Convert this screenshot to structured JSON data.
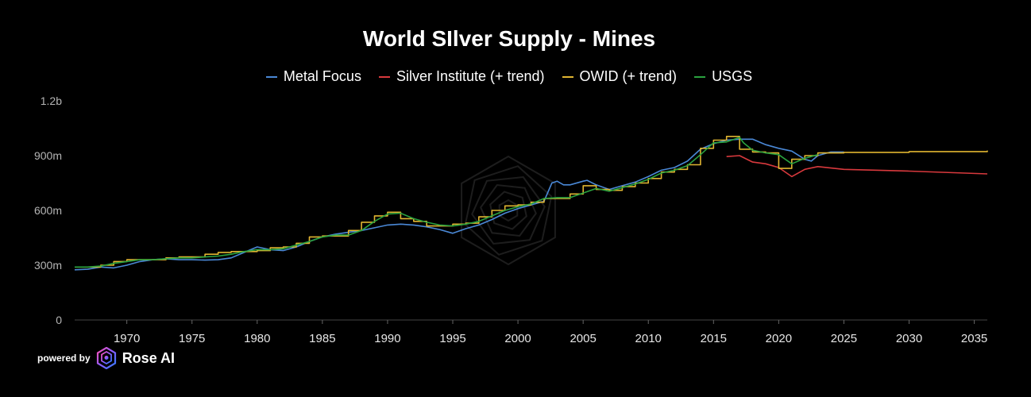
{
  "chart_data": {
    "type": "line",
    "title": "World SIlver Supply - Mines",
    "xlabel": "",
    "ylabel": "",
    "xlim": [
      1966,
      2036
    ],
    "ylim": [
      0,
      1200
    ],
    "y_ticks": [
      {
        "value": 0,
        "label": "0"
      },
      {
        "value": 300,
        "label": "300m"
      },
      {
        "value": 600,
        "label": "600m"
      },
      {
        "value": 900,
        "label": "900m"
      },
      {
        "value": 1200,
        "label": "1.2b"
      }
    ],
    "x_ticks": [
      {
        "value": 1970,
        "label": "1970"
      },
      {
        "value": 1975,
        "label": "1975"
      },
      {
        "value": 1980,
        "label": "1980"
      },
      {
        "value": 1985,
        "label": "1985"
      },
      {
        "value": 1990,
        "label": "1990"
      },
      {
        "value": 1995,
        "label": "1995"
      },
      {
        "value": 2000,
        "label": "2000"
      },
      {
        "value": 2005,
        "label": "2005"
      },
      {
        "value": 2010,
        "label": "2010"
      },
      {
        "value": 2015,
        "label": "2015"
      },
      {
        "value": 2020,
        "label": "2020"
      },
      {
        "value": 2025,
        "label": "2025"
      },
      {
        "value": 2030,
        "label": "2030"
      },
      {
        "value": 2035,
        "label": "2035"
      }
    ],
    "grid": false,
    "legend_position": "top-center",
    "series": [
      {
        "name": "Metal Focus",
        "color": "#4a88d6",
        "step": false,
        "points": [
          [
            1966,
            275
          ],
          [
            1967,
            278
          ],
          [
            1968,
            290
          ],
          [
            1969,
            285
          ],
          [
            1970,
            300
          ],
          [
            1971,
            320
          ],
          [
            1972,
            330
          ],
          [
            1973,
            335
          ],
          [
            1974,
            330
          ],
          [
            1975,
            330
          ],
          [
            1976,
            328
          ],
          [
            1977,
            330
          ],
          [
            1978,
            340
          ],
          [
            1979,
            370
          ],
          [
            1980,
            400
          ],
          [
            1981,
            385
          ],
          [
            1982,
            380
          ],
          [
            1983,
            400
          ],
          [
            1984,
            430
          ],
          [
            1985,
            455
          ],
          [
            1986,
            470
          ],
          [
            1987,
            480
          ],
          [
            1988,
            490
          ],
          [
            1989,
            505
          ],
          [
            1990,
            520
          ],
          [
            1991,
            525
          ],
          [
            1992,
            520
          ],
          [
            1993,
            510
          ],
          [
            1994,
            495
          ],
          [
            1995,
            475
          ],
          [
            1996,
            500
          ],
          [
            1997,
            520
          ],
          [
            1998,
            550
          ],
          [
            1999,
            585
          ],
          [
            2000,
            610
          ],
          [
            2001,
            630
          ],
          [
            2002,
            650
          ],
          [
            2002.6,
            750
          ],
          [
            2003,
            760
          ],
          [
            2003.5,
            740
          ],
          [
            2004,
            740
          ],
          [
            2005,
            760
          ],
          [
            2005.3,
            765
          ],
          [
            2006,
            740
          ],
          [
            2007,
            715
          ],
          [
            2008,
            735
          ],
          [
            2009,
            755
          ],
          [
            2010,
            785
          ],
          [
            2011,
            820
          ],
          [
            2012,
            835
          ],
          [
            2013,
            870
          ],
          [
            2014,
            935
          ],
          [
            2015,
            965
          ],
          [
            2016,
            985
          ],
          [
            2017,
            990
          ],
          [
            2018,
            990
          ],
          [
            2019,
            960
          ],
          [
            2020,
            940
          ],
          [
            2021,
            925
          ],
          [
            2022,
            880
          ],
          [
            2022.5,
            870
          ],
          [
            2023,
            900
          ],
          [
            2024,
            920
          ],
          [
            2025,
            920
          ]
        ]
      },
      {
        "name": "Silver Institute (+ trend)",
        "color": "#d8393d",
        "step": false,
        "points": [
          [
            2016,
            895
          ],
          [
            2017,
            900
          ],
          [
            2018,
            865
          ],
          [
            2019,
            855
          ],
          [
            2020,
            835
          ],
          [
            2021,
            785
          ],
          [
            2022,
            825
          ],
          [
            2023,
            840
          ],
          [
            2025,
            825
          ],
          [
            2030,
            815
          ],
          [
            2036,
            800
          ]
        ]
      },
      {
        "name": "OWID (+ trend)",
        "color": "#e0b531",
        "step": true,
        "points": [
          [
            1966,
            290
          ],
          [
            1967,
            290
          ],
          [
            1968,
            300
          ],
          [
            1969,
            320
          ],
          [
            1970,
            330
          ],
          [
            1971,
            330
          ],
          [
            1972,
            330
          ],
          [
            1973,
            340
          ],
          [
            1974,
            345
          ],
          [
            1975,
            345
          ],
          [
            1976,
            360
          ],
          [
            1977,
            370
          ],
          [
            1978,
            375
          ],
          [
            1979,
            375
          ],
          [
            1980,
            380
          ],
          [
            1981,
            395
          ],
          [
            1982,
            400
          ],
          [
            1983,
            420
          ],
          [
            1984,
            455
          ],
          [
            1985,
            460
          ],
          [
            1986,
            460
          ],
          [
            1987,
            490
          ],
          [
            1988,
            535
          ],
          [
            1989,
            570
          ],
          [
            1990,
            590
          ],
          [
            1991,
            555
          ],
          [
            1992,
            540
          ],
          [
            1993,
            515
          ],
          [
            1994,
            515
          ],
          [
            1995,
            525
          ],
          [
            1996,
            530
          ],
          [
            1997,
            565
          ],
          [
            1998,
            600
          ],
          [
            1999,
            625
          ],
          [
            2000,
            630
          ],
          [
            2001,
            645
          ],
          [
            2002,
            665
          ],
          [
            2003,
            665
          ],
          [
            2004,
            690
          ],
          [
            2005,
            735
          ],
          [
            2006,
            715
          ],
          [
            2007,
            710
          ],
          [
            2008,
            730
          ],
          [
            2009,
            750
          ],
          [
            2010,
            775
          ],
          [
            2011,
            810
          ],
          [
            2012,
            825
          ],
          [
            2013,
            850
          ],
          [
            2014,
            940
          ],
          [
            2015,
            985
          ],
          [
            2016,
            1005
          ],
          [
            2017,
            935
          ],
          [
            2018,
            920
          ],
          [
            2019,
            915
          ],
          [
            2020,
            830
          ],
          [
            2021,
            880
          ],
          [
            2022,
            900
          ],
          [
            2023,
            915
          ],
          [
            2025,
            918
          ],
          [
            2030,
            922
          ],
          [
            2036,
            928
          ]
        ]
      },
      {
        "name": "USGS",
        "color": "#2aa23f",
        "step": false,
        "points": [
          [
            1966,
            290
          ],
          [
            1967,
            290
          ],
          [
            1968,
            295
          ],
          [
            1969,
            310
          ],
          [
            1970,
            320
          ],
          [
            1971,
            330
          ],
          [
            1972,
            330
          ],
          [
            1973,
            335
          ],
          [
            1974,
            340
          ],
          [
            1975,
            340
          ],
          [
            1976,
            345
          ],
          [
            1977,
            350
          ],
          [
            1978,
            360
          ],
          [
            1979,
            375
          ],
          [
            1980,
            385
          ],
          [
            1981,
            385
          ],
          [
            1982,
            390
          ],
          [
            1983,
            410
          ],
          [
            1984,
            430
          ],
          [
            1985,
            455
          ],
          [
            1986,
            465
          ],
          [
            1987,
            465
          ],
          [
            1988,
            490
          ],
          [
            1989,
            540
          ],
          [
            1990,
            580
          ],
          [
            1991,
            585
          ],
          [
            1992,
            555
          ],
          [
            1993,
            535
          ],
          [
            1994,
            520
          ],
          [
            1995,
            515
          ],
          [
            1996,
            525
          ],
          [
            1997,
            540
          ],
          [
            1998,
            570
          ],
          [
            1999,
            600
          ],
          [
            2000,
            620
          ],
          [
            2001,
            635
          ],
          [
            2002,
            665
          ],
          [
            2003,
            670
          ],
          [
            2004,
            670
          ],
          [
            2005,
            695
          ],
          [
            2006,
            720
          ],
          [
            2007,
            705
          ],
          [
            2008,
            725
          ],
          [
            2009,
            745
          ],
          [
            2010,
            770
          ],
          [
            2011,
            805
          ],
          [
            2012,
            820
          ],
          [
            2013,
            845
          ],
          [
            2014,
            905
          ],
          [
            2015,
            970
          ],
          [
            2016,
            975
          ],
          [
            2017,
            1000
          ],
          [
            2017.3,
            970
          ],
          [
            2018,
            930
          ],
          [
            2019,
            915
          ],
          [
            2020,
            905
          ],
          [
            2021,
            855
          ],
          [
            2022,
            885
          ],
          [
            2023,
            905
          ]
        ]
      }
    ]
  },
  "branding": {
    "powered_by": "powered by",
    "name": "Rose AI"
  }
}
